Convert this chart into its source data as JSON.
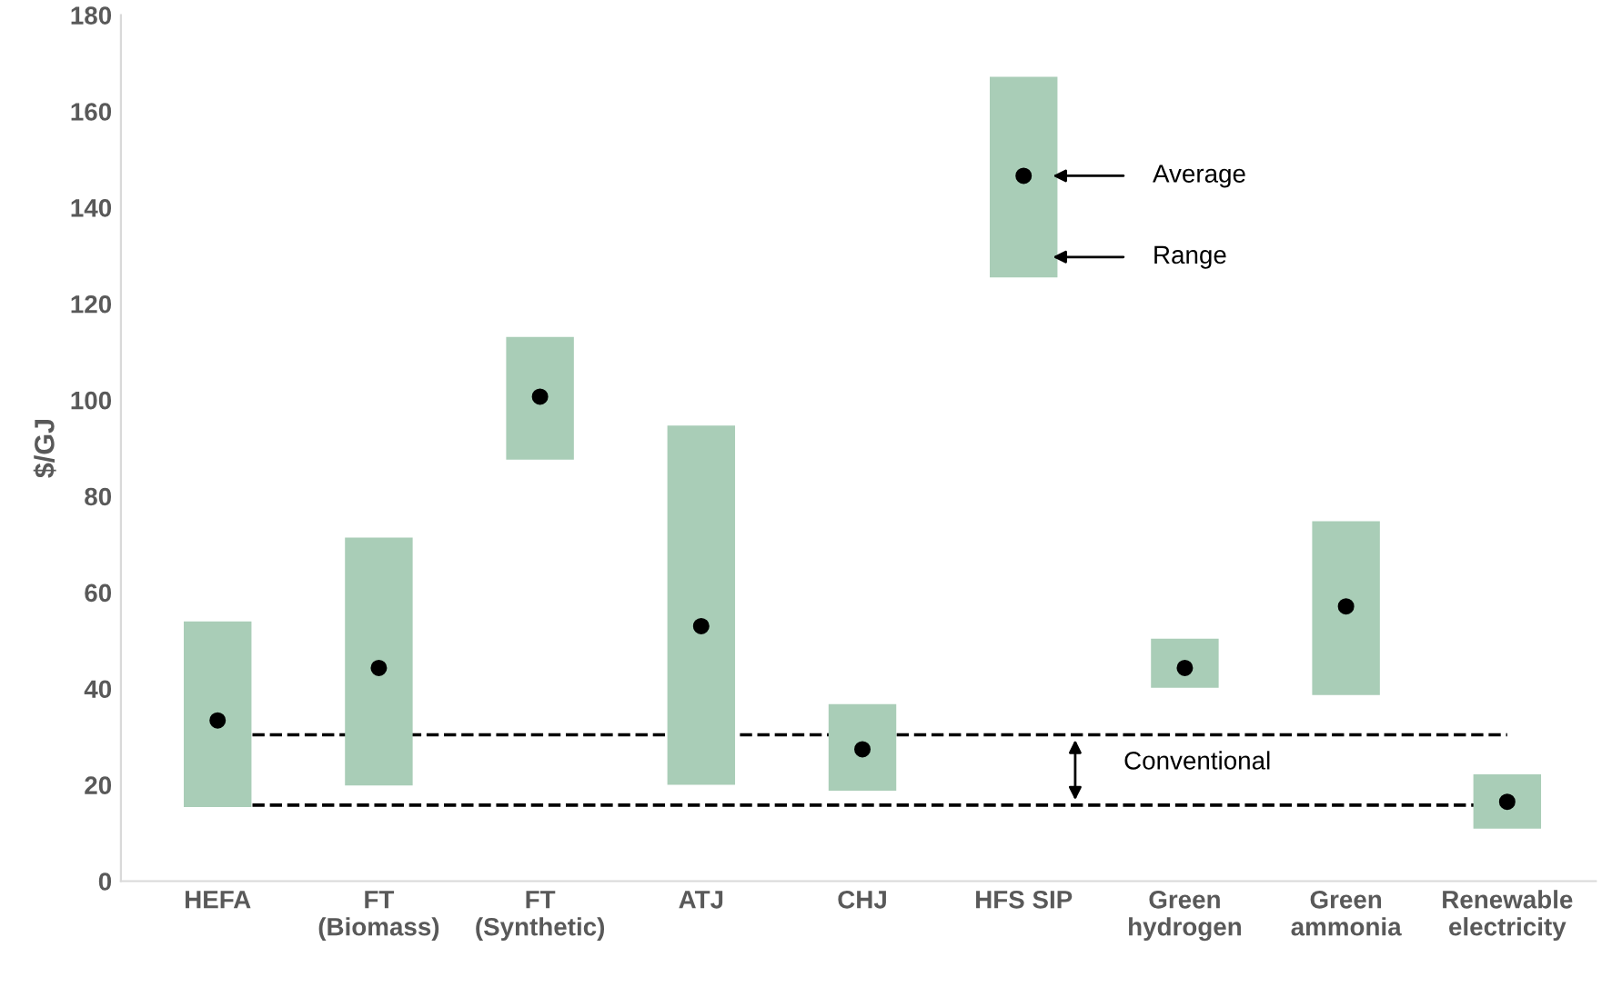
{
  "chart_data": {
    "type": "bar",
    "ylabel": "$/GJ",
    "categories": [
      "HEFA",
      "FT\n(Biomass)",
      "FT\n(Synthetic)",
      "ATJ",
      "CHJ",
      "HFS SIP",
      "Green\nhydrogen",
      "Green\nammonia",
      "Renewable\nelectricity"
    ],
    "series": [
      {
        "color": "#a9cdb7",
        "base": [
          15.4,
          19.9,
          87.6,
          20,
          18.8,
          125.5,
          40.2,
          38.7,
          10.9
        ],
        "values": [
          38.6,
          51.5,
          25.5,
          74.7,
          18,
          41.7,
          10.2,
          36.1,
          11.3
        ]
      },
      {
        "type": "scatter",
        "color": "#000000",
        "marker": "circle",
        "x": [
          "HEFA",
          "FT\n(Biomass)",
          "FT\n(Synthetic)",
          "ATJ",
          "CHJ",
          "HFS SIP",
          "Green\nhydrogen",
          "Green\nammonia",
          "Renewable\nelectricity"
        ],
        "values": [
          33.4,
          44.3,
          100.7,
          53,
          27.4,
          146.6,
          44.3,
          57.1,
          16.5
        ]
      }
    ],
    "ref_lines": [
      {
        "axis": "y",
        "value": 30.4,
        "line_style": "dashed",
        "color": "#000000"
      },
      {
        "axis": "y",
        "value": 15.8,
        "line_style": "dashed",
        "color": "#000000"
      }
    ],
    "annotations": [
      "Average",
      "Range",
      "Conventional"
    ],
    "ylim": [
      0,
      180
    ],
    "yticks": [
      0,
      20,
      40,
      60,
      80,
      100,
      120,
      140,
      160,
      180
    ],
    "grid": false,
    "legend": false
  }
}
